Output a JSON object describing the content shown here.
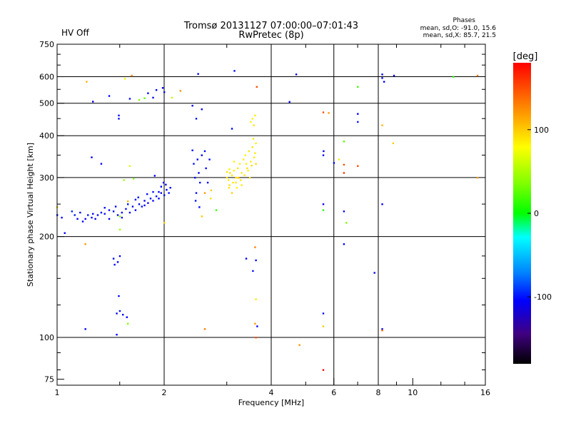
{
  "status": {
    "text": "HV Off",
    "color": "#cc0000"
  },
  "chart_data": {
    "type": "scatter",
    "title": "Tromsø 20131127 07:00:00–07:01:43",
    "subtitle": "RwPretec (8p)",
    "xlabel": "Frequency [MHz]",
    "ylabel": "Stationary phase Virtual Height [km]",
    "x_scale": "log",
    "y_scale": "log",
    "xlim": [
      1,
      16
    ],
    "ylim": [
      72,
      750
    ],
    "x_ticks": [
      1,
      2,
      4,
      6,
      8,
      10,
      16
    ],
    "x_tick_labels": [
      "1",
      "2",
      "4",
      "6",
      "8",
      "10",
      "16"
    ],
    "x_gridlines": [
      2,
      4,
      6,
      8
    ],
    "y_ticks": [
      75,
      100,
      200,
      300,
      400,
      500,
      600,
      750
    ],
    "y_tick_labels": [
      "75",
      "100",
      "200",
      "300",
      "400",
      "500",
      "600",
      "750"
    ],
    "y_gridlines": [
      100,
      200,
      300,
      400,
      500,
      600
    ],
    "legend": {
      "title": "Phases",
      "line1": "mean, sd,O: -91.0, 15.6",
      "line2": "mean, sd,X:  85.7, 21.5"
    },
    "colorbar": {
      "label": "[deg]",
      "range": [
        -180,
        180
      ],
      "ticks": [
        100,
        0,
        -100
      ],
      "tick_labels": [
        "100",
        "0",
        "-100"
      ]
    },
    "series": [
      {
        "name": "O-trace",
        "points": [
          [
            1.0,
            232,
            -105
          ],
          [
            1.03,
            228,
            -110
          ],
          [
            1.05,
            205,
            -110
          ],
          [
            1.1,
            238,
            -100
          ],
          [
            1.12,
            232,
            -105
          ],
          [
            1.14,
            226,
            -110
          ],
          [
            1.16,
            236,
            -108
          ],
          [
            1.18,
            222,
            -110
          ],
          [
            1.2,
            226,
            -112
          ],
          [
            1.22,
            232,
            -106
          ],
          [
            1.25,
            228,
            -110
          ],
          [
            1.28,
            226,
            -112
          ],
          [
            1.3,
            232,
            -108
          ],
          [
            1.33,
            236,
            -110
          ],
          [
            1.36,
            234,
            -106
          ],
          [
            1.4,
            240,
            -110
          ],
          [
            1.44,
            238,
            -108
          ],
          [
            1.48,
            232,
            -112
          ],
          [
            1.52,
            236,
            -110
          ],
          [
            1.56,
            242,
            -106
          ],
          [
            1.6,
            236,
            -110
          ],
          [
            1.63,
            246,
            -112
          ],
          [
            1.66,
            240,
            -108
          ],
          [
            1.7,
            250,
            -110
          ],
          [
            1.73,
            246,
            -106
          ],
          [
            1.76,
            256,
            -110
          ],
          [
            1.8,
            252,
            -112
          ],
          [
            1.83,
            260,
            -108
          ],
          [
            1.86,
            256,
            -110
          ],
          [
            1.9,
            264,
            -106
          ],
          [
            1.93,
            260,
            -110
          ],
          [
            1.96,
            270,
            -112
          ],
          [
            2.0,
            266,
            -108
          ],
          [
            2.03,
            276,
            -110
          ],
          [
            2.06,
            270,
            -106
          ],
          [
            2.08,
            280,
            -110
          ],
          [
            1.58,
            250,
            -105
          ],
          [
            1.66,
            258,
            -112
          ],
          [
            1.76,
            248,
            -110
          ],
          [
            1.86,
            272,
            -106
          ],
          [
            1.96,
            282,
            -110
          ],
          [
            1.88,
            304,
            -108
          ],
          [
            2.02,
            286,
            -112
          ],
          [
            1.46,
            246,
            -110
          ],
          [
            1.52,
            228,
            -112
          ],
          [
            1.36,
            244,
            -106
          ],
          [
            1.69,
            262,
            -110
          ],
          [
            1.79,
            268,
            -108
          ],
          [
            1.99,
            290,
            -110
          ],
          [
            1.93,
            272,
            -112
          ],
          [
            1.26,
            234,
            -108
          ],
          [
            1.4,
            226,
            -110
          ],
          [
            2.4,
            362,
            -110
          ],
          [
            2.42,
            330,
            -106
          ],
          [
            2.44,
            300,
            -112
          ],
          [
            2.46,
            270,
            -108
          ],
          [
            2.48,
            340,
            -110
          ],
          [
            2.5,
            310,
            -112
          ],
          [
            2.52,
            290,
            -106
          ],
          [
            2.55,
            350,
            -110
          ],
          [
            2.6,
            360,
            -108
          ],
          [
            2.62,
            320,
            -112
          ],
          [
            2.65,
            290,
            -110
          ],
          [
            2.68,
            340,
            -108
          ],
          [
            2.45,
            256,
            -106
          ],
          [
            2.51,
            245,
            -110
          ],
          [
            1.98,
            556,
            -110
          ],
          [
            2.0,
            540,
            -106
          ],
          [
            1.86,
            520,
            -112
          ],
          [
            1.8,
            536,
            -108
          ],
          [
            1.9,
            548,
            -110
          ],
          [
            1.6,
            516,
            -106
          ],
          [
            1.4,
            526,
            -110
          ],
          [
            1.26,
            506,
            -112
          ],
          [
            2.49,
            612,
            -110
          ],
          [
            3.15,
            625,
            -108
          ],
          [
            2.4,
            492,
            -110
          ],
          [
            2.46,
            450,
            -106
          ],
          [
            2.55,
            480,
            -112
          ],
          [
            3.1,
            420,
            -110
          ],
          [
            1.49,
            460,
            -110
          ],
          [
            1.49,
            450,
            -106
          ],
          [
            1.25,
            345,
            -110
          ],
          [
            1.33,
            330,
            -108
          ],
          [
            4.5,
            505,
            -110
          ],
          [
            4.7,
            610,
            -108
          ],
          [
            5.6,
            350,
            -106
          ],
          [
            5.61,
            360,
            -110
          ],
          [
            6.0,
            332,
            -108
          ],
          [
            7.0,
            465,
            -110
          ],
          [
            7.0,
            440,
            -106
          ],
          [
            8.2,
            610,
            -110
          ],
          [
            8.2,
            595,
            -108
          ],
          [
            8.85,
            605,
            -112
          ],
          [
            8.3,
            580,
            -110
          ],
          [
            1.44,
            172,
            -110
          ],
          [
            1.45,
            165,
            -108
          ],
          [
            1.5,
            175,
            -112
          ],
          [
            1.48,
            168,
            -110
          ],
          [
            1.49,
            133,
            -110
          ],
          [
            1.47,
            118,
            -108
          ],
          [
            1.5,
            120,
            -106
          ],
          [
            1.57,
            115,
            -110
          ],
          [
            1.53,
            117,
            -112
          ],
          [
            1.47,
            102,
            -110
          ],
          [
            1.2,
            106,
            -110
          ],
          [
            3.4,
            172,
            -110
          ],
          [
            3.62,
            170,
            -108
          ],
          [
            3.55,
            158,
            -106
          ],
          [
            3.65,
            108,
            -110
          ],
          [
            5.6,
            250,
            -110
          ],
          [
            6.4,
            190,
            -110
          ],
          [
            7.8,
            156,
            -108
          ],
          [
            8.2,
            250,
            -110
          ],
          [
            5.6,
            118,
            -106
          ],
          [
            8.2,
            106,
            -110
          ],
          [
            6.4,
            238,
            -108
          ]
        ]
      },
      {
        "name": "X-trace",
        "points": [
          [
            3.0,
            300,
            90
          ],
          [
            3.03,
            295,
            85
          ],
          [
            3.06,
            310,
            92
          ],
          [
            3.1,
            305,
            88
          ],
          [
            3.14,
            315,
            85
          ],
          [
            3.18,
            300,
            92
          ],
          [
            3.22,
            320,
            88
          ],
          [
            3.26,
            330,
            85
          ],
          [
            3.3,
            310,
            90
          ],
          [
            3.34,
            340,
            88
          ],
          [
            3.38,
            350,
            85
          ],
          [
            3.42,
            320,
            92
          ],
          [
            3.46,
            360,
            88
          ],
          [
            3.5,
            335,
            85
          ],
          [
            3.54,
            370,
            90
          ],
          [
            3.58,
            345,
            88
          ],
          [
            3.62,
            380,
            85
          ],
          [
            3.05,
            285,
            92
          ],
          [
            3.12,
            290,
            88
          ],
          [
            3.2,
            280,
            85
          ],
          [
            3.28,
            295,
            90
          ],
          [
            3.36,
            305,
            88
          ],
          [
            3.44,
            315,
            85
          ],
          [
            3.52,
            326,
            92
          ],
          [
            3.6,
            355,
            88
          ],
          [
            3.05,
            318,
            85
          ],
          [
            3.18,
            290,
            90
          ],
          [
            3.22,
            300,
            88
          ],
          [
            3.4,
            330,
            85
          ],
          [
            3.48,
            300,
            92
          ],
          [
            3.56,
            392,
            88
          ],
          [
            3.54,
            450,
            85
          ],
          [
            3.57,
            430,
            90
          ],
          [
            3.6,
            460,
            88
          ],
          [
            3.5,
            440,
            85
          ],
          [
            3.1,
            270,
            100
          ],
          [
            3.04,
            280,
            90
          ],
          [
            3.3,
            285,
            88
          ],
          [
            3.14,
            335,
            85
          ],
          [
            3.24,
            300,
            110
          ],
          [
            3.62,
            330,
            95
          ],
          [
            3.0,
            312,
            92
          ],
          [
            2.7,
            260,
            95
          ],
          [
            2.71,
            275,
            100
          ],
          [
            1.21,
            580,
            110
          ],
          [
            1.55,
            592,
            85
          ],
          [
            1.62,
            605,
            130
          ],
          [
            1.7,
            512,
            40
          ],
          [
            1.76,
            518,
            30
          ],
          [
            2.1,
            520,
            60
          ],
          [
            2.22,
            545,
            120
          ],
          [
            3.64,
            560,
            150
          ],
          [
            5.6,
            470,
            150
          ],
          [
            5.8,
            468,
            120
          ],
          [
            7.0,
            560,
            20
          ],
          [
            8.2,
            430,
            110
          ],
          [
            8.8,
            380,
            100
          ],
          [
            15.2,
            605,
            130
          ],
          [
            15.2,
            300,
            120
          ],
          [
            6.4,
            385,
            30
          ],
          [
            6.2,
            340,
            90
          ],
          [
            7.0,
            325,
            150
          ],
          [
            6.4,
            310,
            160
          ],
          [
            5.6,
            240,
            10
          ],
          [
            6.5,
            220,
            40
          ],
          [
            6.4,
            328,
            150
          ],
          [
            4.8,
            95,
            120
          ],
          [
            5.6,
            80,
            180
          ],
          [
            5.6,
            108,
            100
          ],
          [
            3.6,
            110,
            120
          ],
          [
            3.62,
            100,
            150
          ],
          [
            3.62,
            130,
            90
          ],
          [
            3.6,
            186,
            130
          ],
          [
            2.6,
            106,
            130
          ],
          [
            1.58,
            110,
            40
          ],
          [
            1.2,
            190,
            120
          ],
          [
            1.0,
            245,
            100
          ],
          [
            1.5,
            230,
            40
          ],
          [
            1.58,
            255,
            110
          ],
          [
            1.54,
            295,
            50
          ],
          [
            1.64,
            298,
            40
          ],
          [
            1.6,
            325,
            70
          ],
          [
            2.55,
            230,
            100
          ],
          [
            2.8,
            240,
            20
          ],
          [
            1.5,
            210,
            50
          ],
          [
            2.0,
            220,
            100
          ],
          [
            2.6,
            270,
            120
          ],
          [
            8.2,
            105,
            140
          ],
          [
            13.0,
            600,
            10
          ]
        ]
      }
    ]
  }
}
